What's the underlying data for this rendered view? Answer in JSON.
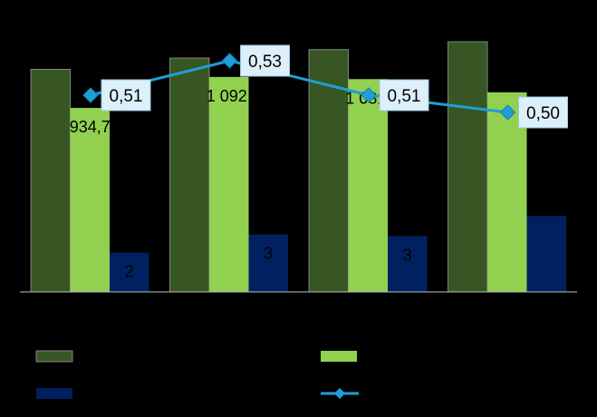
{
  "chart_data": {
    "type": "bar",
    "categories": [
      "",
      "",
      "",
      ""
    ],
    "series": [
      {
        "values": [
          1131,
          1188,
          1231,
          1271
        ],
        "color": "#375623",
        "label_values": [
          null,
          null,
          null,
          null
        ]
      },
      {
        "values": [
          934.7,
          1092,
          1081,
          1014
        ],
        "color": "#92D050",
        "label_values": [
          "934,7",
          "1 092,",
          "1 081,",
          null
        ]
      },
      {
        "values": [
          200,
          292,
          284,
          386
        ],
        "color": "#002060",
        "label_values": [
          "2",
          "3",
          "3",
          null
        ]
      }
    ],
    "line_series": {
      "values": [
        0.51,
        0.53,
        0.51,
        0.5
      ],
      "labels": [
        "0,51",
        "0,53",
        "0,51",
        "0,50"
      ],
      "color": "#1E9FD8",
      "marker_color": "#1E9FD8",
      "label_box_color": "#DDF0FA",
      "ylim": [
        0.47,
        0.54
      ]
    },
    "ylim": [
      0,
      1400
    ],
    "grid": false,
    "legend_position": "bottom",
    "legend": [
      {
        "series": 0,
        "kind": "bar",
        "color": "#375623",
        "label": ""
      },
      {
        "series": 1,
        "kind": "bar",
        "color": "#92D050",
        "label": ""
      },
      {
        "series": 2,
        "kind": "bar",
        "color": "#002060",
        "label": ""
      },
      {
        "series": "line",
        "kind": "line",
        "color": "#1E9FD8",
        "label": ""
      }
    ]
  }
}
